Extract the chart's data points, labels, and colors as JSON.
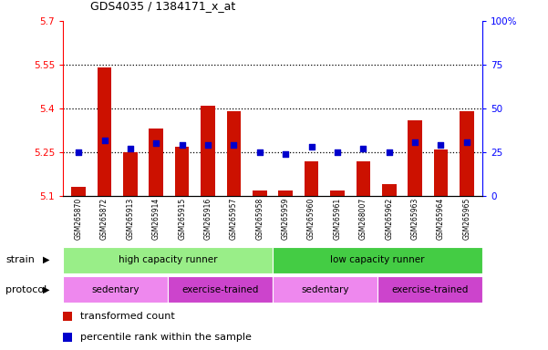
{
  "title": "GDS4035 / 1384171_x_at",
  "samples": [
    "GSM265870",
    "GSM265872",
    "GSM265913",
    "GSM265914",
    "GSM265915",
    "GSM265916",
    "GSM265957",
    "GSM265958",
    "GSM265959",
    "GSM265960",
    "GSM265961",
    "GSM268007",
    "GSM265962",
    "GSM265963",
    "GSM265964",
    "GSM265965"
  ],
  "red_values": [
    5.13,
    5.54,
    5.25,
    5.33,
    5.27,
    5.41,
    5.39,
    5.12,
    5.12,
    5.22,
    5.12,
    5.22,
    5.14,
    5.36,
    5.26,
    5.39
  ],
  "blue_values": [
    25,
    32,
    27,
    30,
    29,
    29,
    29,
    25,
    24,
    28,
    25,
    27,
    25,
    31,
    29,
    31
  ],
  "ylim_left": [
    5.1,
    5.7
  ],
  "ylim_right": [
    0,
    100
  ],
  "yticks_left": [
    5.1,
    5.25,
    5.4,
    5.55,
    5.7
  ],
  "yticks_right": [
    0,
    25,
    50,
    75,
    100
  ],
  "ytick_labels_left": [
    "5.1",
    "5.25",
    "5.4",
    "5.55",
    "5.7"
  ],
  "ytick_labels_right": [
    "0",
    "25",
    "50",
    "75",
    "100%"
  ],
  "hlines": [
    5.25,
    5.4,
    5.55
  ],
  "bar_color": "#CC1100",
  "dot_color": "#0000CC",
  "strain_groups": [
    {
      "label": "high capacity runner",
      "start": 0,
      "end": 8,
      "color": "#99EE88"
    },
    {
      "label": "low capacity runner",
      "start": 8,
      "end": 16,
      "color": "#44CC44"
    }
  ],
  "protocol_groups": [
    {
      "label": "sedentary",
      "start": 0,
      "end": 4,
      "color": "#EE88EE"
    },
    {
      "label": "exercise-trained",
      "start": 4,
      "end": 8,
      "color": "#CC44CC"
    },
    {
      "label": "sedentary",
      "start": 8,
      "end": 12,
      "color": "#EE88EE"
    },
    {
      "label": "exercise-trained",
      "start": 12,
      "end": 16,
      "color": "#CC44CC"
    }
  ],
  "legend_items": [
    {
      "label": "transformed count",
      "color": "#CC1100"
    },
    {
      "label": "percentile rank within the sample",
      "color": "#0000CC"
    }
  ],
  "bg_color": "#FFFFFF",
  "plot_bg": "#FFFFFF",
  "label_strain": "strain",
  "label_protocol": "protocol"
}
